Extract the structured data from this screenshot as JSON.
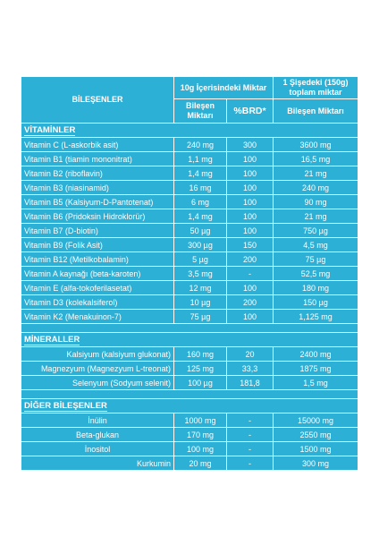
{
  "header": {
    "col_ingredients": "BİLEŞENLER",
    "col_10g": "10g İçerisindeki Miktar",
    "col_bottle": "1 Şişedeki (150g) toplam miktar",
    "sub_amount": "Bileşen Miktarı",
    "sub_brd": "%BRD*",
    "sub_amount_total": "Bileşen Miktarı"
  },
  "sections": [
    {
      "title": "VİTAMİNLER",
      "rows": [
        {
          "name": "Vitamin C (L-askorbik asit)",
          "amount": "240 mg",
          "brd": "300",
          "total": "3600 mg"
        },
        {
          "name": "Vitamin B1 (tiamin mononitrat)",
          "amount": "1,1 mg",
          "brd": "100",
          "total": "16,5 mg"
        },
        {
          "name": "Vitamin B2 (riboflavin)",
          "amount": "1,4 mg",
          "brd": "100",
          "total": "21 mg"
        },
        {
          "name": "Vitamin B3 (niasinamid)",
          "amount": "16 mg",
          "brd": "100",
          "total": "240 mg"
        },
        {
          "name": "Vitamin B5 (Kalsiyum-D-Pantotenat)",
          "amount": "6 mg",
          "brd": "100",
          "total": "90 mg"
        },
        {
          "name": "Vitamin B6 (Pridoksin Hidroklorür)",
          "amount": "1,4 mg",
          "brd": "100",
          "total": "21 mg"
        },
        {
          "name": "Vitamin B7 (D-biotin)",
          "amount": "50 µg",
          "brd": "100",
          "total": "750 µg"
        },
        {
          "name": "Vitamin B9 (Folik Asit)",
          "amount": "300 µg",
          "brd": "150",
          "total": "4,5 mg"
        },
        {
          "name": "Vitamin B12 (Metilkobalamin)",
          "amount": "5 µg",
          "brd": "200",
          "total": "75 µg"
        },
        {
          "name": "Vitamin A kaynağı (beta-karoten)",
          "amount": "3,5 mg",
          "brd": "-",
          "total": "52,5 mg"
        },
        {
          "name": "Vitamin E (alfa-tokoferilasetat)",
          "amount": "12 mg",
          "brd": "100",
          "total": "180 mg"
        },
        {
          "name": "Vitamin D3 (kolekalsiferol)",
          "amount": "10 µg",
          "brd": "200",
          "total": "150 µg"
        },
        {
          "name": "Vitamin K2 (Menakuinon-7)",
          "amount": "75 µg",
          "brd": "100",
          "total": "1,125 mg"
        }
      ]
    },
    {
      "title": "MİNERALLER",
      "rows": [
        {
          "name": "Kalsiyum (kalsiyum glukonat)",
          "amount": "160 mg",
          "brd": "20",
          "total": "2400 mg"
        },
        {
          "name": "Magnezyum (Magnezyum L-treonat)",
          "amount": "125 mg",
          "brd": "33,3",
          "total": "1875 mg"
        },
        {
          "name": "Selenyum (Sodyum selenit)",
          "amount": "100 µg",
          "brd": "181,8",
          "total": "1,5 mg"
        }
      ]
    },
    {
      "title": "DİĞER BİLEŞENLER",
      "rows": [
        {
          "name": "İnülin",
          "amount": "1000 mg",
          "brd": "-",
          "total": "15000 mg"
        },
        {
          "name": "Beta-glukan",
          "amount": "170 mg",
          "brd": "-",
          "total": "2550 mg"
        },
        {
          "name": "İnositol",
          "amount": "100 mg",
          "brd": "-",
          "total": "1500 mg"
        },
        {
          "name": "Kurkumin",
          "amount": "20 mg",
          "brd": "-",
          "total": "300 mg"
        }
      ]
    }
  ],
  "colors": {
    "cell_bg": "#2db0d6",
    "text": "#ffffff",
    "border": "#ffffff"
  }
}
